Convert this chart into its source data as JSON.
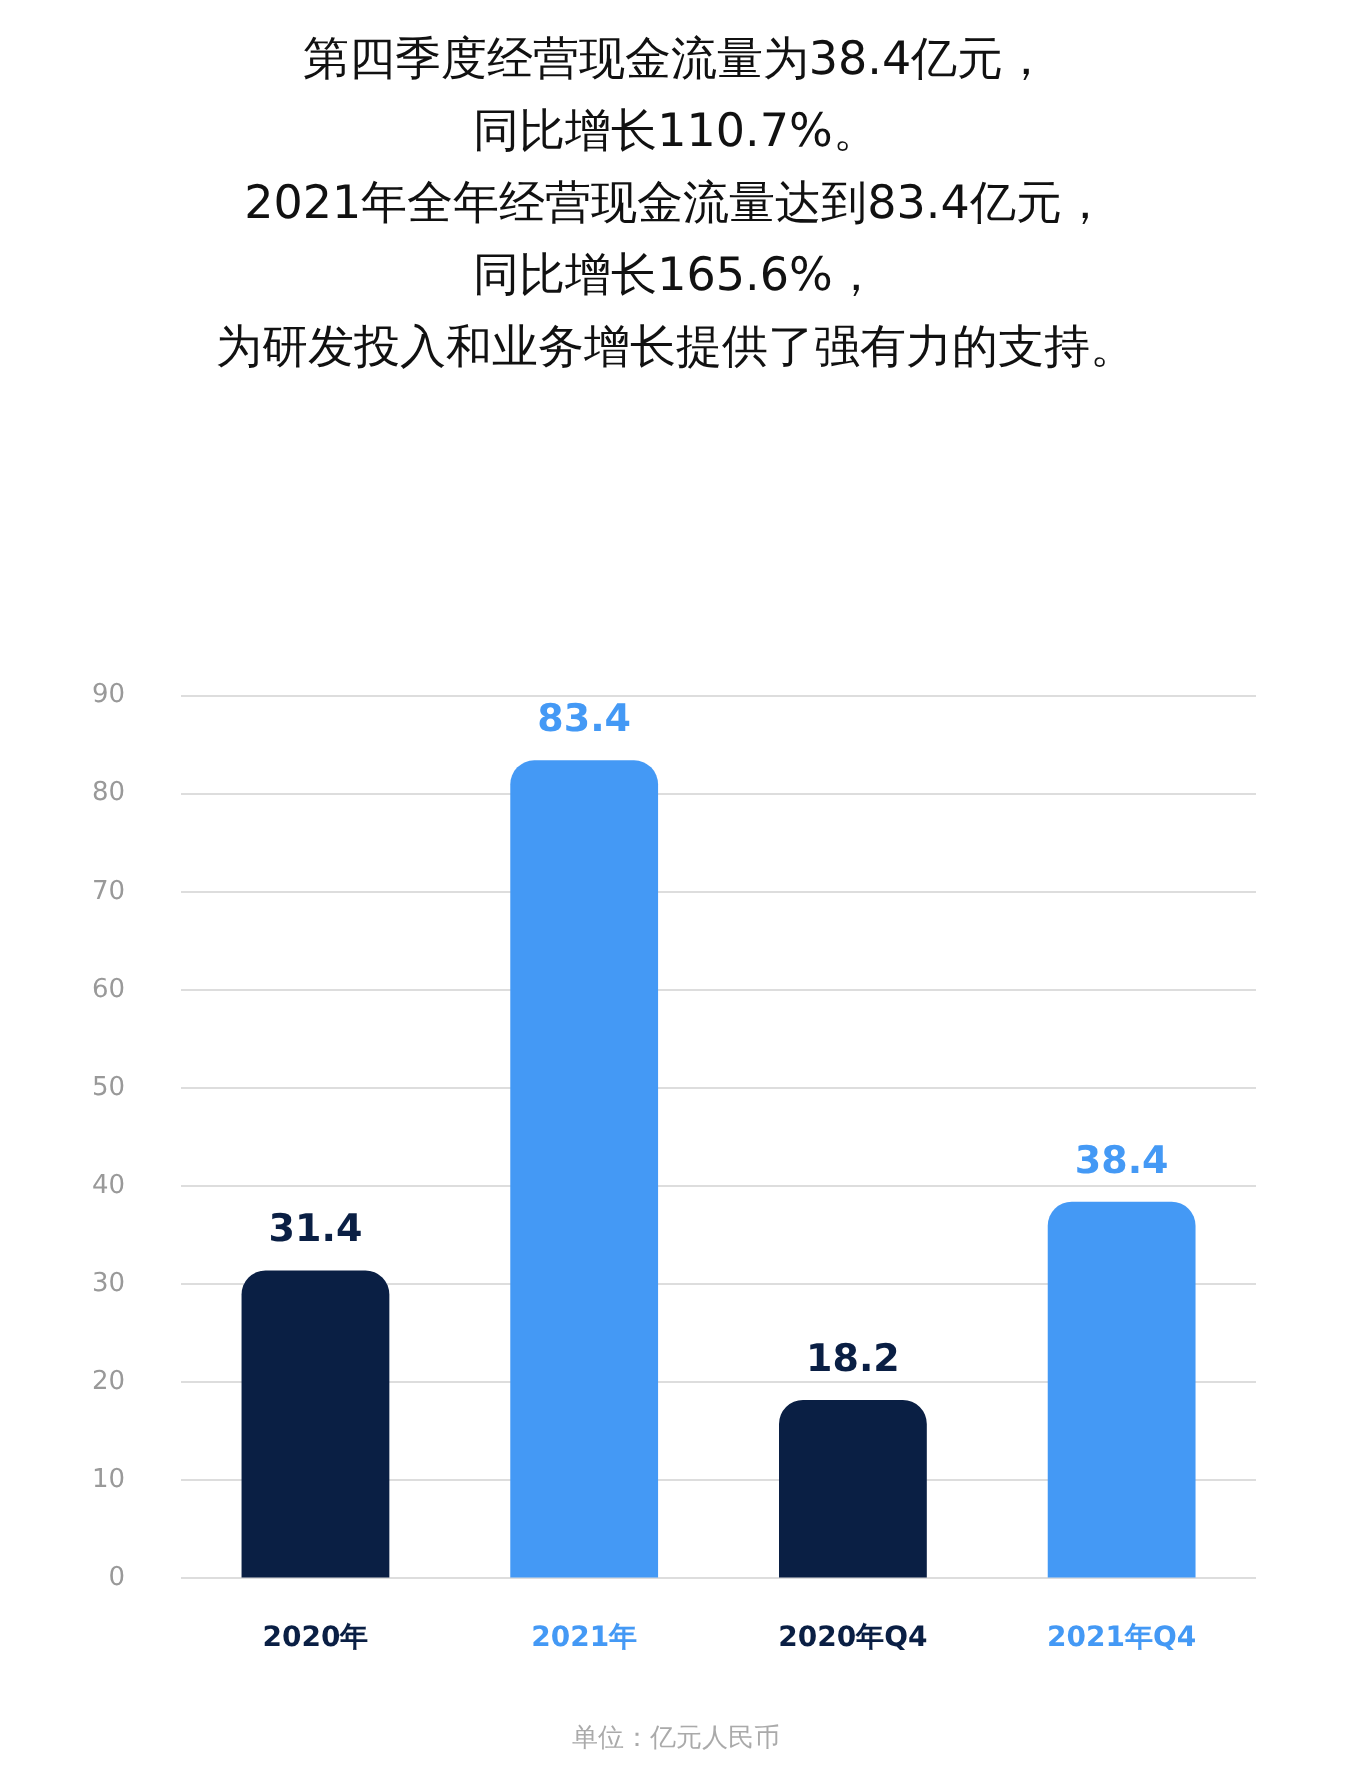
{
  "chart_data": {
    "type": "bar",
    "title": "第四季度经营现金流量为38.4亿元，同比增长110.7%。2021年全年经营现金流量达到83.4亿元，同比增长165.6%，为研发投入和业务增长提供了强有力的支持。",
    "categories": [
      "2020年",
      "2021年",
      "2020年Q4",
      "2021年Q4"
    ],
    "values": [
      31.4,
      83.4,
      18.2,
      38.4
    ],
    "colors": [
      "#0a1f44",
      "#4499f5",
      "#0a1f44",
      "#4499f5"
    ],
    "ylim": [
      0,
      90
    ],
    "yticks": [
      0,
      10,
      20,
      30,
      40,
      50,
      60,
      70,
      80,
      90
    ],
    "grid": "y",
    "data_labels": true,
    "annotations": [
      "单位：亿元人民币"
    ]
  }
}
